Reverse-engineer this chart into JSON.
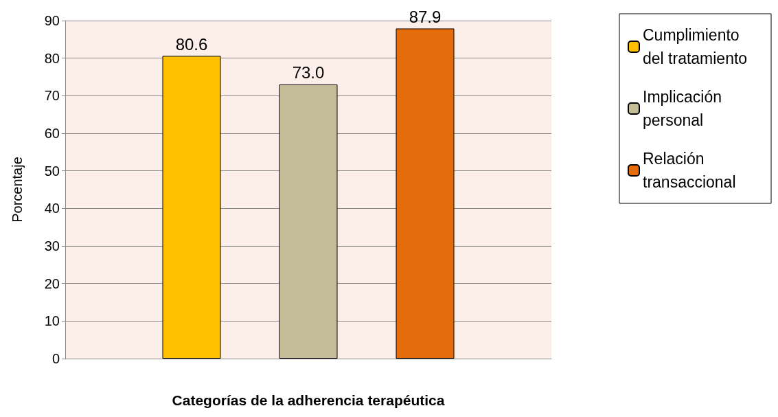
{
  "chart_data": {
    "type": "bar",
    "xlabel": "Categorías de la adherencia terapéutica",
    "ylabel": "Porcentaje",
    "categories": [
      null
    ],
    "series": [
      {
        "name": "Cumplimiento del tratamiento",
        "color": "#ffc000",
        "values": [
          80.6
        ],
        "value_labels": [
          "80.6"
        ]
      },
      {
        "name": "Implicación personal",
        "color": "#c4bd97",
        "values": [
          73.0
        ],
        "value_labels": [
          "73.0"
        ]
      },
      {
        "name": "Relación transaccional",
        "color": "#e46c0a",
        "values": [
          87.9
        ],
        "value_labels": [
          "87.9"
        ]
      }
    ],
    "ylim": [
      0,
      90
    ],
    "yticks": [
      0,
      10,
      20,
      30,
      40,
      50,
      60,
      70,
      80,
      90
    ],
    "grid": "y",
    "legend": "right"
  }
}
